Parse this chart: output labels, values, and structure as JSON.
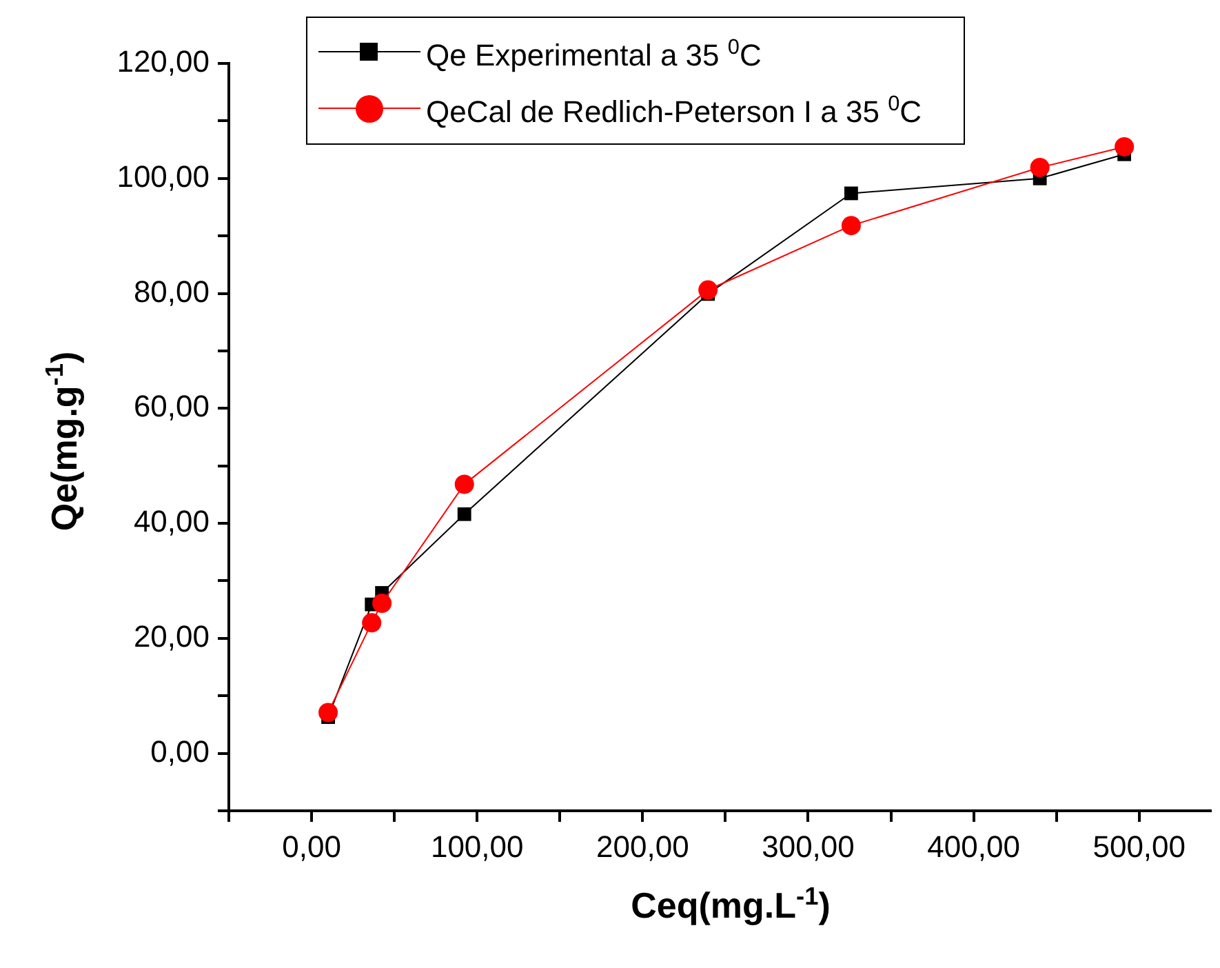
{
  "chart_data": {
    "type": "line",
    "xlabel": "Ceq(mg.L$^{-1}$)",
    "ylabel": "Qe(mg.g$^{-1}$)",
    "x": [
      10,
      36.3,
      42.5,
      92.3,
      239.5,
      326,
      440,
      491
    ],
    "series": [
      {
        "name": "Qe Experimental a 35 $^{0}$C",
        "color": "#000000",
        "marker": "square",
        "values": [
          6.3,
          25.9,
          27.9,
          41.6,
          79.9,
          97.4,
          100,
          104.2
        ]
      },
      {
        "name": "QeCal de Redlich-Peterson I a 35 $^{0}$C",
        "color": "#ff0000",
        "marker": "circle",
        "values": [
          7.1,
          22.7,
          26.1,
          46.8,
          80.6,
          91.8,
          101.9,
          105.5
        ]
      }
    ],
    "xlim": [
      -50,
      543
    ],
    "xticks": [
      {
        "value": -50,
        "label": null
      },
      {
        "value": 0,
        "label": "0,00"
      },
      {
        "value": 50,
        "label": null
      },
      {
        "value": 100,
        "label": "100,00"
      },
      {
        "value": 150,
        "label": null
      },
      {
        "value": 200,
        "label": "200,00"
      },
      {
        "value": 250,
        "label": null
      },
      {
        "value": 300,
        "label": "300,00"
      },
      {
        "value": 350,
        "label": null
      },
      {
        "value": 400,
        "label": "400,00"
      },
      {
        "value": 450,
        "label": null
      },
      {
        "value": 500,
        "label": "500,00"
      }
    ],
    "ylim": [
      -10,
      120
    ],
    "yticks": [
      {
        "value": -10,
        "label": null
      },
      {
        "value": 0,
        "label": "0,00"
      },
      {
        "value": 10,
        "label": null
      },
      {
        "value": 20,
        "label": "20,00"
      },
      {
        "value": 30,
        "label": null
      },
      {
        "value": 40,
        "label": "40,00"
      },
      {
        "value": 50,
        "label": null
      },
      {
        "value": 60,
        "label": "60,00"
      },
      {
        "value": 70,
        "label": null
      },
      {
        "value": 80,
        "label": "80,00"
      },
      {
        "value": 90,
        "label": null
      },
      {
        "value": 100,
        "label": "100,00"
      },
      {
        "value": 110,
        "label": null
      },
      {
        "value": 120,
        "label": "120,00"
      }
    ],
    "grid": false,
    "legend": "top",
    "line_style": "solid"
  }
}
